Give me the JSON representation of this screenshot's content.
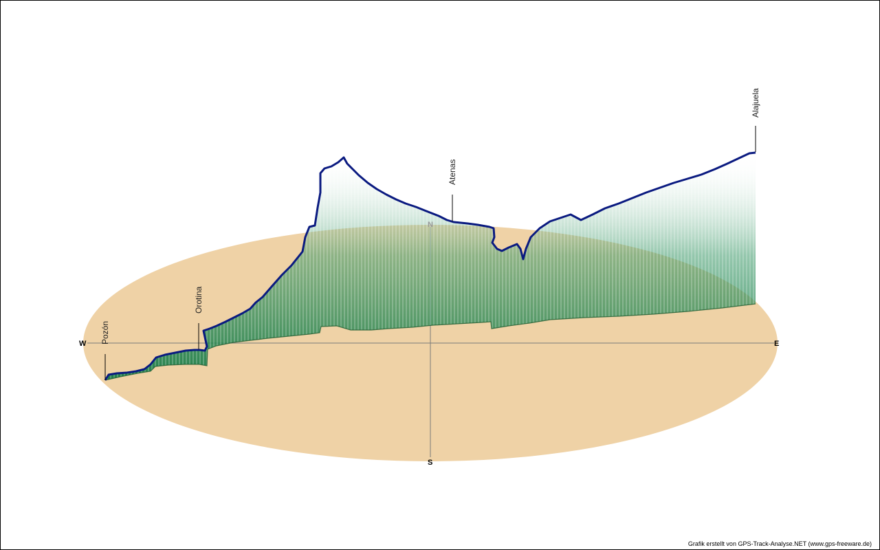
{
  "chart_data": {
    "type": "3d-elevation-profile",
    "compass": {
      "north": "N",
      "south": "S",
      "west": "W",
      "east": "E"
    },
    "waypoints": [
      {
        "name": "Pozón",
        "t": 0.0
      },
      {
        "name": "Orotina",
        "t": 0.14
      },
      {
        "name": "Atenas",
        "t": 0.53
      },
      {
        "name": "Alajuela",
        "t": 1.0
      }
    ],
    "colors": {
      "ground": "#efd2a6",
      "track": "#0a1a80",
      "curtain_bottom": "#157a45",
      "curtain_top": "#ffffff",
      "axis": "#7a7a7a"
    }
  },
  "credit": "Grafik erstellt von GPS-Track-Analyse.NET (www.gps-freeware.de)"
}
